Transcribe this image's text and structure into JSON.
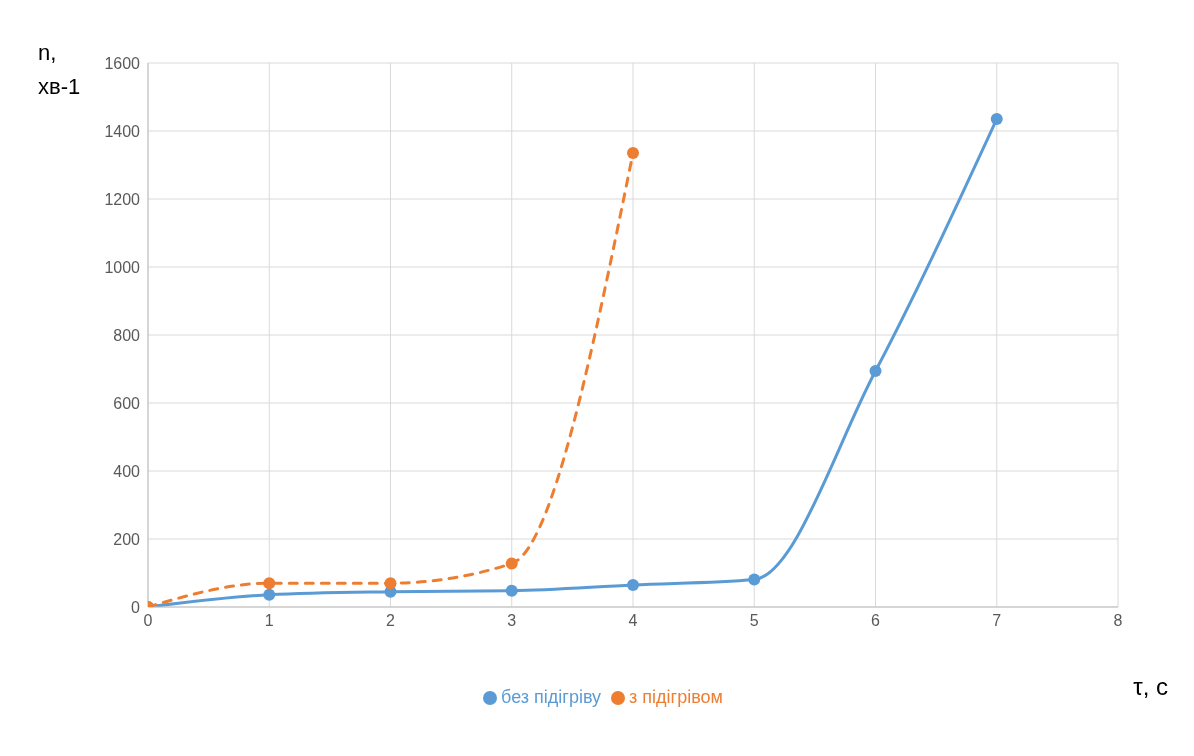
{
  "chart_data": {
    "type": "line",
    "xlabel": "τ, с",
    "ylabel": "n, хв-1",
    "x": [
      0,
      1,
      2,
      3,
      4,
      5,
      6,
      7
    ],
    "series": [
      {
        "name": "без підігріву",
        "color": "#5b9bd5",
        "values": [
          0,
          36,
          45,
          48,
          65,
          81,
          694,
          1435
        ],
        "line_style": "solid"
      },
      {
        "name": "з підігрівом",
        "color": "#ed7d31",
        "values": [
          0,
          70,
          70,
          128,
          1335,
          null,
          null,
          null
        ],
        "line_style": "dashed"
      }
    ],
    "xlim": [
      0,
      8
    ],
    "xticks": [
      0,
      1,
      2,
      3,
      4,
      5,
      6,
      7,
      8
    ],
    "ylim": [
      0,
      1600
    ],
    "yticks": [
      0,
      200,
      400,
      600,
      800,
      1000,
      1200,
      1400,
      1600
    ],
    "grid": true,
    "legend": "bottom",
    "marker": "circle"
  }
}
